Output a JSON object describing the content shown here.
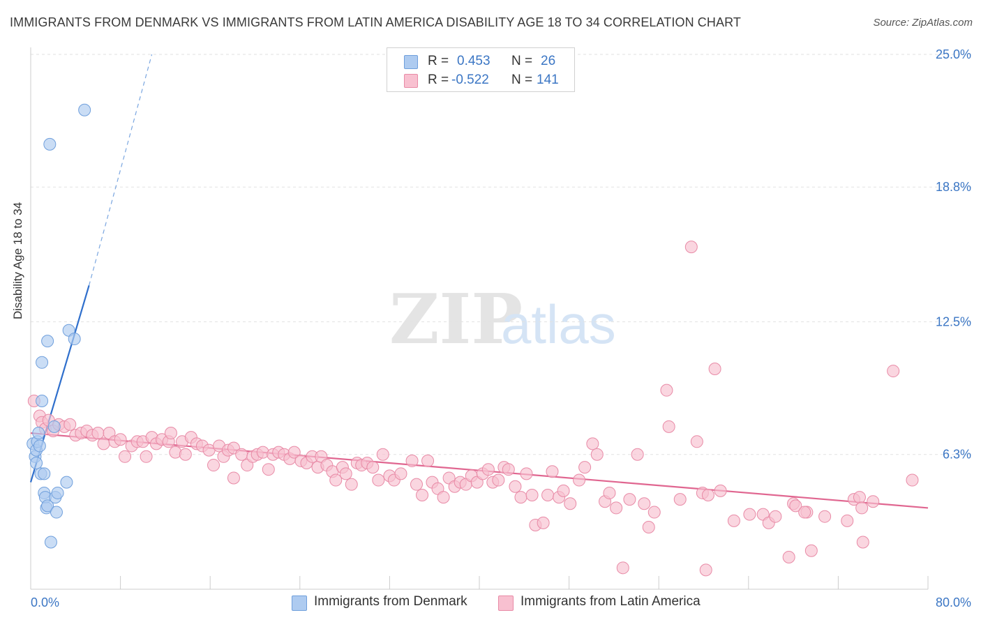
{
  "title": "IMMIGRANTS FROM DENMARK VS IMMIGRANTS FROM LATIN AMERICA DISABILITY AGE 18 TO 34 CORRELATION CHART",
  "source": "Source: ZipAtlas.com",
  "legend": {
    "r_label": "R =",
    "n_label": "N =",
    "rows": [
      {
        "r": "0.453",
        "n": "26",
        "color": "#aecbf0",
        "border": "#6f9fdc"
      },
      {
        "r": "-0.522",
        "n": "141",
        "color": "#f8c0d0",
        "border": "#e88aa6"
      }
    ]
  },
  "bottom_legend": [
    {
      "label": "Immigrants from Denmark",
      "color": "#aecbf0",
      "border": "#6f9fdc"
    },
    {
      "label": "Immigrants from Latin America",
      "color": "#f8c0d0",
      "border": "#e88aa6"
    }
  ],
  "chart_data": {
    "type": "scatter",
    "title": "IMMIGRANTS FROM DENMARK VS IMMIGRANTS FROM LATIN AMERICA DISABILITY AGE 18 TO 34 CORRELATION CHART",
    "xlabel": "",
    "ylabel": "Disability Age 18 to 34",
    "xlim": [
      0,
      80
    ],
    "ylim": [
      0,
      25
    ],
    "x_tick_labels": [
      "0.0%",
      "80.0%"
    ],
    "y_tick_labels": [
      "6.3%",
      "12.5%",
      "18.8%",
      "25.0%"
    ],
    "y_ticks": [
      6.3,
      12.5,
      18.8,
      25.0
    ],
    "grid": true,
    "series": [
      {
        "name": "Immigrants from Denmark",
        "color": "#6f9fdc",
        "fill": "#aecbf0",
        "points": [
          [
            0.2,
            6.8
          ],
          [
            0.4,
            6.2
          ],
          [
            0.5,
            6.5
          ],
          [
            0.5,
            5.9
          ],
          [
            0.6,
            6.9
          ],
          [
            0.7,
            7.3
          ],
          [
            0.8,
            6.7
          ],
          [
            0.9,
            5.4
          ],
          [
            1.0,
            8.8
          ],
          [
            1.0,
            10.6
          ],
          [
            1.2,
            5.4
          ],
          [
            1.2,
            4.5
          ],
          [
            1.3,
            4.3
          ],
          [
            1.4,
            3.8
          ],
          [
            1.5,
            3.9
          ],
          [
            1.5,
            11.6
          ],
          [
            1.7,
            20.8
          ],
          [
            1.8,
            2.2
          ],
          [
            2.1,
            7.6
          ],
          [
            2.2,
            4.3
          ],
          [
            2.3,
            3.6
          ],
          [
            2.4,
            4.5
          ],
          [
            3.2,
            5.0
          ],
          [
            3.4,
            12.1
          ],
          [
            3.9,
            11.7
          ],
          [
            4.8,
            22.4
          ]
        ],
        "trend": {
          "x0": 0,
          "y0": 5.0,
          "x1": 5.2,
          "y1": 14.2,
          "dash_to": [
            10.8,
            25.0
          ]
        }
      },
      {
        "name": "Immigrants from Latin America",
        "color": "#e88aa6",
        "fill": "#f8c0d0",
        "points": [
          [
            0.3,
            8.8
          ],
          [
            0.8,
            8.1
          ],
          [
            1.0,
            7.8
          ],
          [
            1.3,
            7.5
          ],
          [
            1.6,
            7.9
          ],
          [
            2.0,
            7.4
          ],
          [
            2.5,
            7.7
          ],
          [
            3.0,
            7.6
          ],
          [
            3.5,
            7.7
          ],
          [
            4.0,
            7.2
          ],
          [
            4.5,
            7.3
          ],
          [
            5.0,
            7.4
          ],
          [
            5.5,
            7.2
          ],
          [
            6.0,
            7.3
          ],
          [
            6.5,
            6.8
          ],
          [
            7.0,
            7.3
          ],
          [
            7.5,
            6.9
          ],
          [
            8.0,
            7.0
          ],
          [
            8.4,
            6.2
          ],
          [
            9.0,
            6.7
          ],
          [
            9.5,
            6.9
          ],
          [
            10.0,
            6.9
          ],
          [
            10.3,
            6.2
          ],
          [
            10.8,
            7.1
          ],
          [
            11.2,
            6.8
          ],
          [
            11.7,
            7.0
          ],
          [
            12.3,
            6.9
          ],
          [
            12.5,
            7.3
          ],
          [
            12.9,
            6.4
          ],
          [
            13.5,
            6.9
          ],
          [
            13.8,
            6.3
          ],
          [
            14.3,
            7.1
          ],
          [
            14.8,
            6.8
          ],
          [
            15.3,
            6.7
          ],
          [
            15.9,
            6.5
          ],
          [
            16.3,
            5.8
          ],
          [
            16.8,
            6.7
          ],
          [
            17.2,
            6.2
          ],
          [
            17.6,
            6.5
          ],
          [
            18.1,
            6.6
          ],
          [
            18.1,
            5.2
          ],
          [
            18.8,
            6.3
          ],
          [
            19.3,
            5.8
          ],
          [
            19.8,
            6.2
          ],
          [
            20.2,
            6.3
          ],
          [
            20.7,
            6.4
          ],
          [
            21.2,
            5.6
          ],
          [
            21.6,
            6.3
          ],
          [
            22.1,
            6.4
          ],
          [
            22.6,
            6.3
          ],
          [
            23.1,
            6.1
          ],
          [
            23.5,
            6.4
          ],
          [
            24.1,
            6.0
          ],
          [
            24.6,
            5.9
          ],
          [
            25.1,
            6.2
          ],
          [
            25.6,
            5.7
          ],
          [
            25.9,
            6.2
          ],
          [
            26.4,
            5.8
          ],
          [
            26.9,
            5.5
          ],
          [
            27.2,
            5.1
          ],
          [
            27.8,
            5.7
          ],
          [
            28.1,
            5.4
          ],
          [
            28.6,
            4.9
          ],
          [
            29.1,
            5.9
          ],
          [
            29.5,
            5.8
          ],
          [
            30.0,
            5.9
          ],
          [
            30.5,
            5.7
          ],
          [
            31.0,
            5.1
          ],
          [
            31.4,
            6.3
          ],
          [
            32.0,
            5.3
          ],
          [
            32.4,
            5.1
          ],
          [
            33.0,
            5.4
          ],
          [
            34.0,
            6.0
          ],
          [
            34.4,
            4.9
          ],
          [
            34.9,
            4.4
          ],
          [
            35.4,
            6.0
          ],
          [
            35.8,
            5.0
          ],
          [
            36.3,
            4.7
          ],
          [
            36.8,
            4.3
          ],
          [
            37.3,
            5.2
          ],
          [
            37.8,
            4.8
          ],
          [
            38.3,
            5.0
          ],
          [
            38.8,
            4.9
          ],
          [
            39.3,
            5.3
          ],
          [
            39.8,
            5.0
          ],
          [
            40.3,
            5.4
          ],
          [
            40.8,
            5.6
          ],
          [
            41.2,
            5.0
          ],
          [
            41.7,
            5.1
          ],
          [
            42.2,
            5.7
          ],
          [
            42.6,
            5.6
          ],
          [
            43.2,
            4.8
          ],
          [
            43.7,
            4.3
          ],
          [
            44.2,
            5.4
          ],
          [
            44.7,
            4.4
          ],
          [
            45.0,
            3.0
          ],
          [
            45.7,
            3.1
          ],
          [
            46.1,
            4.4
          ],
          [
            46.5,
            5.5
          ],
          [
            47.1,
            4.3
          ],
          [
            47.5,
            4.6
          ],
          [
            48.1,
            4.0
          ],
          [
            48.9,
            5.1
          ],
          [
            49.4,
            5.7
          ],
          [
            50.1,
            6.8
          ],
          [
            50.5,
            6.3
          ],
          [
            51.2,
            4.1
          ],
          [
            51.6,
            4.5
          ],
          [
            52.2,
            3.8
          ],
          [
            52.8,
            1.0
          ],
          [
            53.4,
            4.2
          ],
          [
            54.1,
            6.3
          ],
          [
            54.7,
            4.0
          ],
          [
            55.1,
            2.9
          ],
          [
            55.6,
            3.6
          ],
          [
            56.7,
            9.3
          ],
          [
            56.9,
            7.6
          ],
          [
            57.9,
            4.2
          ],
          [
            58.9,
            16.0
          ],
          [
            59.4,
            6.9
          ],
          [
            59.9,
            4.5
          ],
          [
            60.4,
            4.4
          ],
          [
            61.0,
            10.3
          ],
          [
            61.5,
            4.6
          ],
          [
            62.7,
            3.2
          ],
          [
            64.1,
            3.5
          ],
          [
            65.3,
            3.5
          ],
          [
            65.8,
            3.1
          ],
          [
            66.4,
            3.4
          ],
          [
            68.0,
            4.0
          ],
          [
            67.6,
            1.5
          ],
          [
            69.2,
            3.6
          ],
          [
            69.6,
            1.8
          ],
          [
            70.8,
            3.4
          ],
          [
            72.8,
            3.2
          ],
          [
            73.4,
            4.2
          ],
          [
            73.9,
            4.3
          ],
          [
            74.2,
            2.2
          ],
          [
            75.1,
            4.1
          ],
          [
            76.9,
            10.2
          ],
          [
            78.6,
            5.1
          ],
          [
            74.1,
            3.8
          ],
          [
            68.2,
            3.9
          ],
          [
            60.2,
            0.9
          ],
          [
            69.0,
            3.6
          ]
        ],
        "trend": {
          "x0": 0,
          "y0": 7.3,
          "x1": 80,
          "y1": 3.8
        }
      }
    ]
  }
}
